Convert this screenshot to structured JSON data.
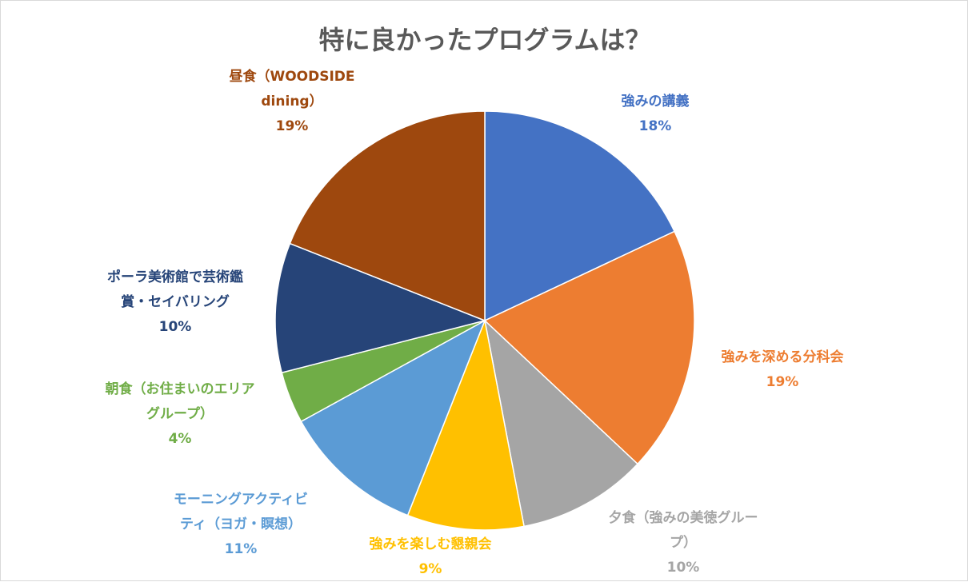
{
  "chart_data": {
    "type": "pie",
    "title": "特に良かったプログラムは？",
    "slices": [
      {
        "label_lines": [
          "強みの講義"
        ],
        "percent_label": "18%",
        "value": 18,
        "color": "#4472C4"
      },
      {
        "label_lines": [
          "強みを深める分科会"
        ],
        "percent_label": "19%",
        "value": 19,
        "color": "#ED7D31"
      },
      {
        "label_lines": [
          "夕食（強みの美徳グルー",
          "プ）"
        ],
        "percent_label": "10%",
        "value": 10,
        "color": "#A5A5A5"
      },
      {
        "label_lines": [
          "強みを楽しむ懇親会"
        ],
        "percent_label": "9%",
        "value": 9,
        "color": "#FFC000"
      },
      {
        "label_lines": [
          "モーニングアクティビ",
          "ティ（ヨガ・瞑想）"
        ],
        "percent_label": "11%",
        "value": 11,
        "color": "#5B9BD5"
      },
      {
        "label_lines": [
          "朝食（お住まいのエリア",
          "グループ）"
        ],
        "percent_label": "4%",
        "value": 4,
        "color": "#70AD47"
      },
      {
        "label_lines": [
          "ポーラ美術館で芸術鑑",
          "賞・セイバリング"
        ],
        "percent_label": "10%",
        "value": 10,
        "color": "#264478"
      },
      {
        "label_lines": [
          "昼食（WOODSIDE",
          "dining）"
        ],
        "percent_label": "19%",
        "value": 19,
        "color": "#9E480E"
      }
    ],
    "legend": "none",
    "data_labels": "outside"
  }
}
